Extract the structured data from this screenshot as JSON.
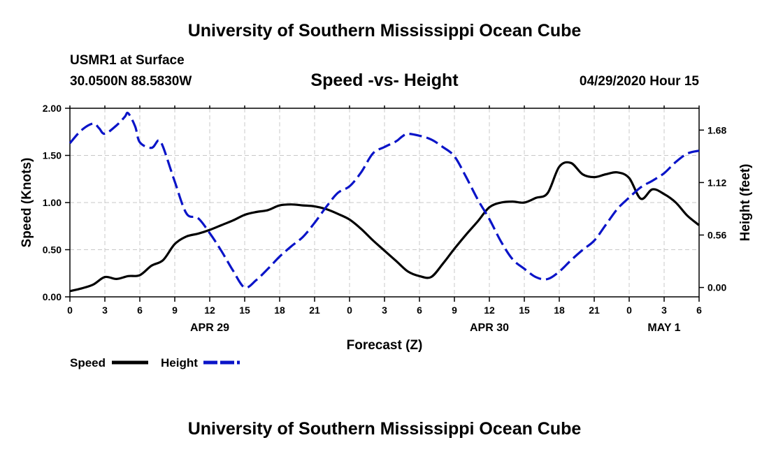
{
  "header": {
    "title": "University of Southern Mississippi Ocean Cube",
    "station": "USMR1 at Surface",
    "coords": "30.0500N 88.5830W",
    "subtitle": "Speed -vs- Height",
    "datetime": "04/29/2020 Hour 15"
  },
  "footer": {
    "title": "University of Southern Mississippi Ocean Cube"
  },
  "chart_data": {
    "type": "line",
    "xlabel": "Forecast (Z)",
    "ylabel_left": "Speed (Knots)",
    "ylabel_right": "Height (feet)",
    "x_hours_range": [
      0,
      54
    ],
    "left_ylim": [
      0,
      2.0
    ],
    "left_ticks": [
      "0.00",
      "0.50",
      "1.00",
      "1.50",
      "2.00"
    ],
    "right_ylim": [
      -0.1,
      1.913
    ],
    "right_ticks": [
      "0.00",
      "0.56",
      "1.12",
      "1.68"
    ],
    "x_ticks": [
      "0",
      "3",
      "6",
      "9",
      "12",
      "15",
      "18",
      "21",
      "0",
      "3",
      "6",
      "9",
      "12",
      "15",
      "18",
      "21",
      "0",
      "3",
      "6"
    ],
    "date_labels": [
      {
        "label": "APR 29",
        "hour": 12
      },
      {
        "label": "APR 30",
        "hour": 36
      },
      {
        "label": "MAY 1",
        "hour": 51
      }
    ],
    "colors": {
      "speed": "#000000",
      "height": "#0a14c8",
      "grid": "#c8c8c8"
    },
    "series": [
      {
        "name": "Speed",
        "axis": "left",
        "style": "solid",
        "x": [
          0,
          1,
          2,
          3,
          4,
          5,
          6,
          7,
          8,
          9,
          10,
          11,
          12,
          13,
          14,
          15,
          16,
          17,
          18,
          19,
          20,
          21,
          22,
          23,
          24,
          25,
          26,
          27,
          28,
          29,
          30,
          31,
          32,
          33,
          34,
          35,
          36,
          37,
          38,
          39,
          40,
          41,
          42,
          43,
          44,
          45,
          46,
          47,
          48,
          49,
          50,
          51,
          52,
          53,
          54
        ],
        "values": [
          0.06,
          0.09,
          0.13,
          0.21,
          0.19,
          0.22,
          0.23,
          0.33,
          0.39,
          0.56,
          0.64,
          0.67,
          0.71,
          0.76,
          0.81,
          0.87,
          0.9,
          0.92,
          0.97,
          0.98,
          0.97,
          0.96,
          0.93,
          0.88,
          0.82,
          0.72,
          0.6,
          0.49,
          0.38,
          0.27,
          0.22,
          0.21,
          0.35,
          0.51,
          0.66,
          0.8,
          0.95,
          1.0,
          1.01,
          1.0,
          1.05,
          1.1,
          1.38,
          1.42,
          1.3,
          1.27,
          1.3,
          1.32,
          1.26,
          1.04,
          1.14,
          1.09,
          1.0,
          0.86,
          0.76
        ]
      },
      {
        "name": "Height",
        "axis": "right",
        "style": "dashed",
        "x": [
          0,
          1,
          2,
          2.5,
          3,
          4,
          4.7,
          5,
          5.6,
          6,
          7,
          7.6,
          8,
          9,
          10,
          11,
          12,
          13,
          14,
          15,
          16,
          17,
          18,
          19,
          20,
          21,
          22,
          23,
          24,
          25,
          26,
          27,
          28,
          28.5,
          29,
          30,
          31,
          32,
          33,
          34,
          35,
          36,
          37,
          38,
          39,
          40,
          41,
          42,
          43,
          44,
          45,
          46,
          47,
          48,
          49,
          50,
          51,
          52,
          53,
          54
        ],
        "values": [
          1.54,
          1.68,
          1.75,
          1.7,
          1.64,
          1.73,
          1.82,
          1.86,
          1.72,
          1.55,
          1.49,
          1.57,
          1.5,
          1.13,
          0.79,
          0.74,
          0.58,
          0.39,
          0.18,
          0.0,
          0.08,
          0.2,
          0.33,
          0.44,
          0.54,
          0.69,
          0.86,
          1.01,
          1.08,
          1.23,
          1.43,
          1.5,
          1.56,
          1.61,
          1.64,
          1.62,
          1.58,
          1.5,
          1.4,
          1.18,
          0.94,
          0.73,
          0.49,
          0.3,
          0.2,
          0.11,
          0.09,
          0.17,
          0.29,
          0.4,
          0.5,
          0.67,
          0.84,
          0.96,
          1.07,
          1.14,
          1.22,
          1.34,
          1.43,
          1.46
        ]
      }
    ],
    "legend": [
      {
        "label": "Speed",
        "series": "Speed"
      },
      {
        "label": "Height",
        "series": "Height"
      }
    ]
  }
}
